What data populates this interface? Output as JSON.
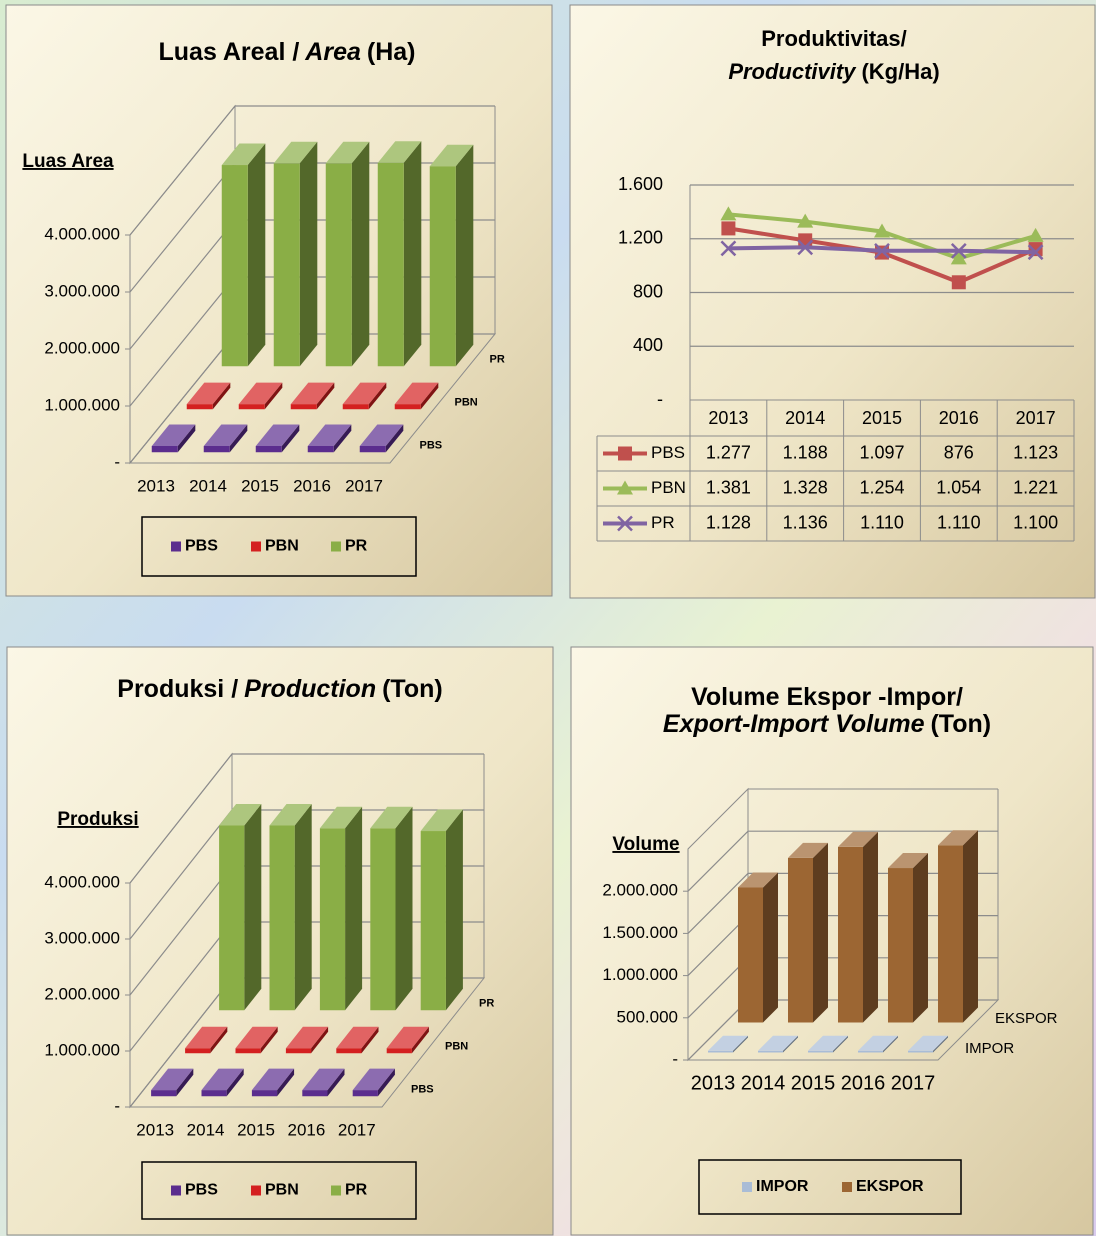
{
  "chart_data": [
    {
      "type": "bar",
      "three_d": true,
      "title": [
        "Luas Areal /",
        "Area",
        "(Ha)"
      ],
      "ylabel": "Luas Area",
      "categories": [
        "2013",
        "2014",
        "2015",
        "2016",
        "2017"
      ],
      "series": [
        {
          "name": "PBS",
          "color": "#5b2d8e",
          "values": [
            110000,
            110000,
            110000,
            110000,
            110000
          ]
        },
        {
          "name": "PBN",
          "color": "#d42020",
          "values": [
            90000,
            90000,
            90000,
            90000,
            90000
          ]
        },
        {
          "name": "PR",
          "color": "#8aae46",
          "values": [
            3530000,
            3560000,
            3560000,
            3570000,
            3510000
          ]
        }
      ],
      "ylim": [
        0,
        4000000
      ],
      "yticks": [
        {
          "value": 0,
          "label": "-"
        },
        {
          "value": 1000000,
          "label": "1.000.000"
        },
        {
          "value": 2000000,
          "label": "2.000.000"
        },
        {
          "value": 3000000,
          "label": "3.000.000"
        },
        {
          "value": 4000000,
          "label": "4.000.000"
        }
      ],
      "grid": true,
      "legend": "bottom"
    },
    {
      "type": "line",
      "title": [
        "Produktivitas/",
        "Productivity",
        "(Kg/Ha)"
      ],
      "categories": [
        "2013",
        "2014",
        "2015",
        "2016",
        "2017"
      ],
      "series": [
        {
          "name": "PBS",
          "color": "#c0504d",
          "marker": "square",
          "values": [
            1277,
            1188,
            1097,
            876,
            1123
          ],
          "value_labels": [
            "1.277",
            "1.188",
            "1.097",
            "876",
            "1.123"
          ]
        },
        {
          "name": "PBN",
          "color": "#9bbb59",
          "marker": "triangle",
          "values": [
            1381,
            1328,
            1254,
            1054,
            1221
          ],
          "value_labels": [
            "1.381",
            "1.328",
            "1.254",
            "1.054",
            "1.221"
          ]
        },
        {
          "name": "PR",
          "color": "#8064a2",
          "marker": "x",
          "values": [
            1128,
            1136,
            1110,
            1110,
            1100
          ],
          "value_labels": [
            "1.128",
            "1.136",
            "1.110",
            "1.110",
            "1.100"
          ]
        }
      ],
      "ylim": [
        0,
        1600
      ],
      "yticks": [
        {
          "value": 0,
          "label": "-"
        },
        400,
        800,
        {
          "value": 1200,
          "label": "1.200"
        },
        {
          "value": 1600,
          "label": "1.600"
        }
      ],
      "grid": true,
      "legend": "table"
    },
    {
      "type": "bar",
      "three_d": true,
      "title": [
        "Produksi /",
        "Production",
        "(Ton)"
      ],
      "ylabel": "Produksi",
      "categories": [
        "2013",
        "2014",
        "2015",
        "2016",
        "2017"
      ],
      "series": [
        {
          "name": "PBS",
          "color": "#5b2d8e",
          "values": [
            110000,
            110000,
            110000,
            110000,
            110000
          ]
        },
        {
          "name": "PBN",
          "color": "#d42020",
          "values": [
            90000,
            90000,
            90000,
            90000,
            90000
          ]
        },
        {
          "name": "PR",
          "color": "#8aae46",
          "values": [
            3300000,
            3300000,
            3250000,
            3250000,
            3200000
          ]
        }
      ],
      "ylim": [
        0,
        4000000
      ],
      "yticks": [
        {
          "value": 0,
          "label": "-"
        },
        {
          "value": 1000000,
          "label": "1.000.000"
        },
        {
          "value": 2000000,
          "label": "2.000.000"
        },
        {
          "value": 3000000,
          "label": "3.000.000"
        },
        {
          "value": 4000000,
          "label": "4.000.000"
        }
      ],
      "grid": true,
      "legend": "bottom"
    },
    {
      "type": "bar",
      "three_d": true,
      "title": [
        "Volume Ekspor -Impor/",
        "Export-Import Volume",
        "(Ton)"
      ],
      "ylabel": "Volume",
      "categories": [
        "2013",
        "2014",
        "2015",
        "2016",
        "2017"
      ],
      "series": [
        {
          "name": "IMPOR",
          "color": "#a9bcd6",
          "values": [
            20000,
            20000,
            20000,
            20000,
            20000
          ]
        },
        {
          "name": "EKSPOR",
          "color": "#9c6633",
          "values": [
            1600000,
            1950000,
            2080000,
            1830000,
            2100000
          ]
        }
      ],
      "ylim": [
        0,
        2500000
      ],
      "yticks": [
        {
          "value": 0,
          "label": "-"
        },
        {
          "value": 500000,
          "label": "500.000"
        },
        {
          "value": 1000000,
          "label": "1.000.000"
        },
        {
          "value": 1500000,
          "label": "1.500.000"
        },
        {
          "value": 2000000,
          "label": "2.000.000"
        }
      ],
      "grid": true,
      "legend": "bottom"
    }
  ]
}
